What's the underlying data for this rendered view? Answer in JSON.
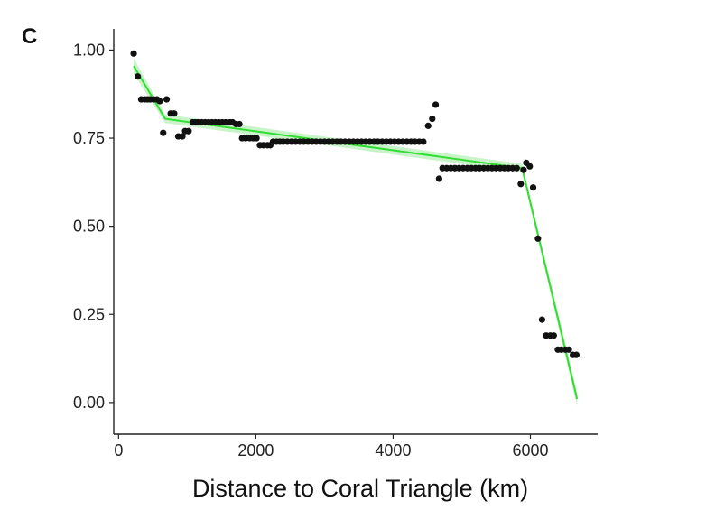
{
  "panel_label": "C",
  "colors": {
    "fit": "#33dd33",
    "band": "#bff2bf",
    "points": "#111111",
    "axis": "#222222"
  },
  "chart_data": {
    "type": "scatter",
    "title": "",
    "xlabel": "Distance to Coral Triangle (km)",
    "ylabel": "",
    "xlim": [
      -70,
      6980
    ],
    "ylim": [
      -0.09,
      1.06
    ],
    "x_ticks": [
      0,
      2000,
      4000,
      6000
    ],
    "x_tick_labels": [
      "0",
      "2000",
      "4000",
      "6000"
    ],
    "y_ticks": [
      0,
      0.25,
      0.5,
      0.75,
      1
    ],
    "y_tick_labels": [
      "0.00",
      "0.25",
      "0.50",
      "0.75",
      "1.00"
    ],
    "grid": false,
    "legend": "none",
    "series": [
      {
        "kind": "points",
        "x": [
          220,
          280,
          330,
          380,
          420,
          460,
          510,
          560,
          600,
          650,
          700,
          760,
          810,
          870,
          930,
          970,
          1020,
          1080,
          1120,
          1160,
          1210,
          1260,
          1310,
          1360,
          1410,
          1460,
          1510,
          1560,
          1620,
          1660,
          1710,
          1760,
          1800,
          1850,
          1910,
          1960,
          2010,
          2060,
          2110,
          2170,
          2210,
          2250,
          2300,
          2350,
          2400,
          2460,
          2520,
          2580,
          2640,
          2700,
          2760,
          2820,
          2880,
          2940,
          3000,
          3060,
          3120,
          3180,
          3240,
          3300,
          3360,
          3420,
          3480,
          3540,
          3600,
          3660,
          3720,
          3780,
          3840,
          3900,
          3960,
          4020,
          4080,
          4140,
          4200,
          4260,
          4320,
          4380,
          4440,
          4510,
          4570,
          4620,
          4670,
          4720,
          4780,
          4840,
          4900,
          4960,
          5020,
          5080,
          5140,
          5200,
          5260,
          5320,
          5380,
          5440,
          5500,
          5560,
          5620,
          5680,
          5740,
          5800,
          5860,
          5900,
          5940,
          5990,
          6040,
          6110,
          6170,
          6230,
          6290,
          6340,
          6400,
          6450,
          6510,
          6560,
          6620,
          6670
        ],
        "y": [
          0.99,
          0.925,
          0.86,
          0.86,
          0.86,
          0.86,
          0.86,
          0.86,
          0.855,
          0.765,
          0.86,
          0.82,
          0.82,
          0.755,
          0.755,
          0.77,
          0.77,
          0.795,
          0.795,
          0.795,
          0.795,
          0.795,
          0.795,
          0.795,
          0.795,
          0.795,
          0.795,
          0.795,
          0.795,
          0.795,
          0.79,
          0.79,
          0.75,
          0.75,
          0.75,
          0.75,
          0.75,
          0.73,
          0.73,
          0.73,
          0.73,
          0.74,
          0.74,
          0.74,
          0.74,
          0.74,
          0.74,
          0.74,
          0.74,
          0.74,
          0.74,
          0.74,
          0.74,
          0.74,
          0.74,
          0.74,
          0.74,
          0.74,
          0.74,
          0.74,
          0.74,
          0.74,
          0.74,
          0.74,
          0.74,
          0.74,
          0.74,
          0.74,
          0.74,
          0.74,
          0.74,
          0.74,
          0.74,
          0.74,
          0.74,
          0.74,
          0.74,
          0.74,
          0.74,
          0.785,
          0.805,
          0.845,
          0.635,
          0.665,
          0.665,
          0.665,
          0.665,
          0.665,
          0.665,
          0.665,
          0.665,
          0.665,
          0.665,
          0.665,
          0.665,
          0.665,
          0.665,
          0.665,
          0.665,
          0.665,
          0.665,
          0.665,
          0.62,
          0.66,
          0.68,
          0.67,
          0.61,
          0.465,
          0.235,
          0.19,
          0.19,
          0.19,
          0.15,
          0.15,
          0.15,
          0.15,
          0.135,
          0.135
        ]
      },
      {
        "kind": "fit",
        "x": [
          220,
          680,
          5880,
          6680
        ],
        "y": [
          0.955,
          0.805,
          0.665,
          0.01
        ],
        "band_halfwidth": [
          0.022,
          0.012,
          0.012,
          0.02
        ]
      }
    ]
  }
}
